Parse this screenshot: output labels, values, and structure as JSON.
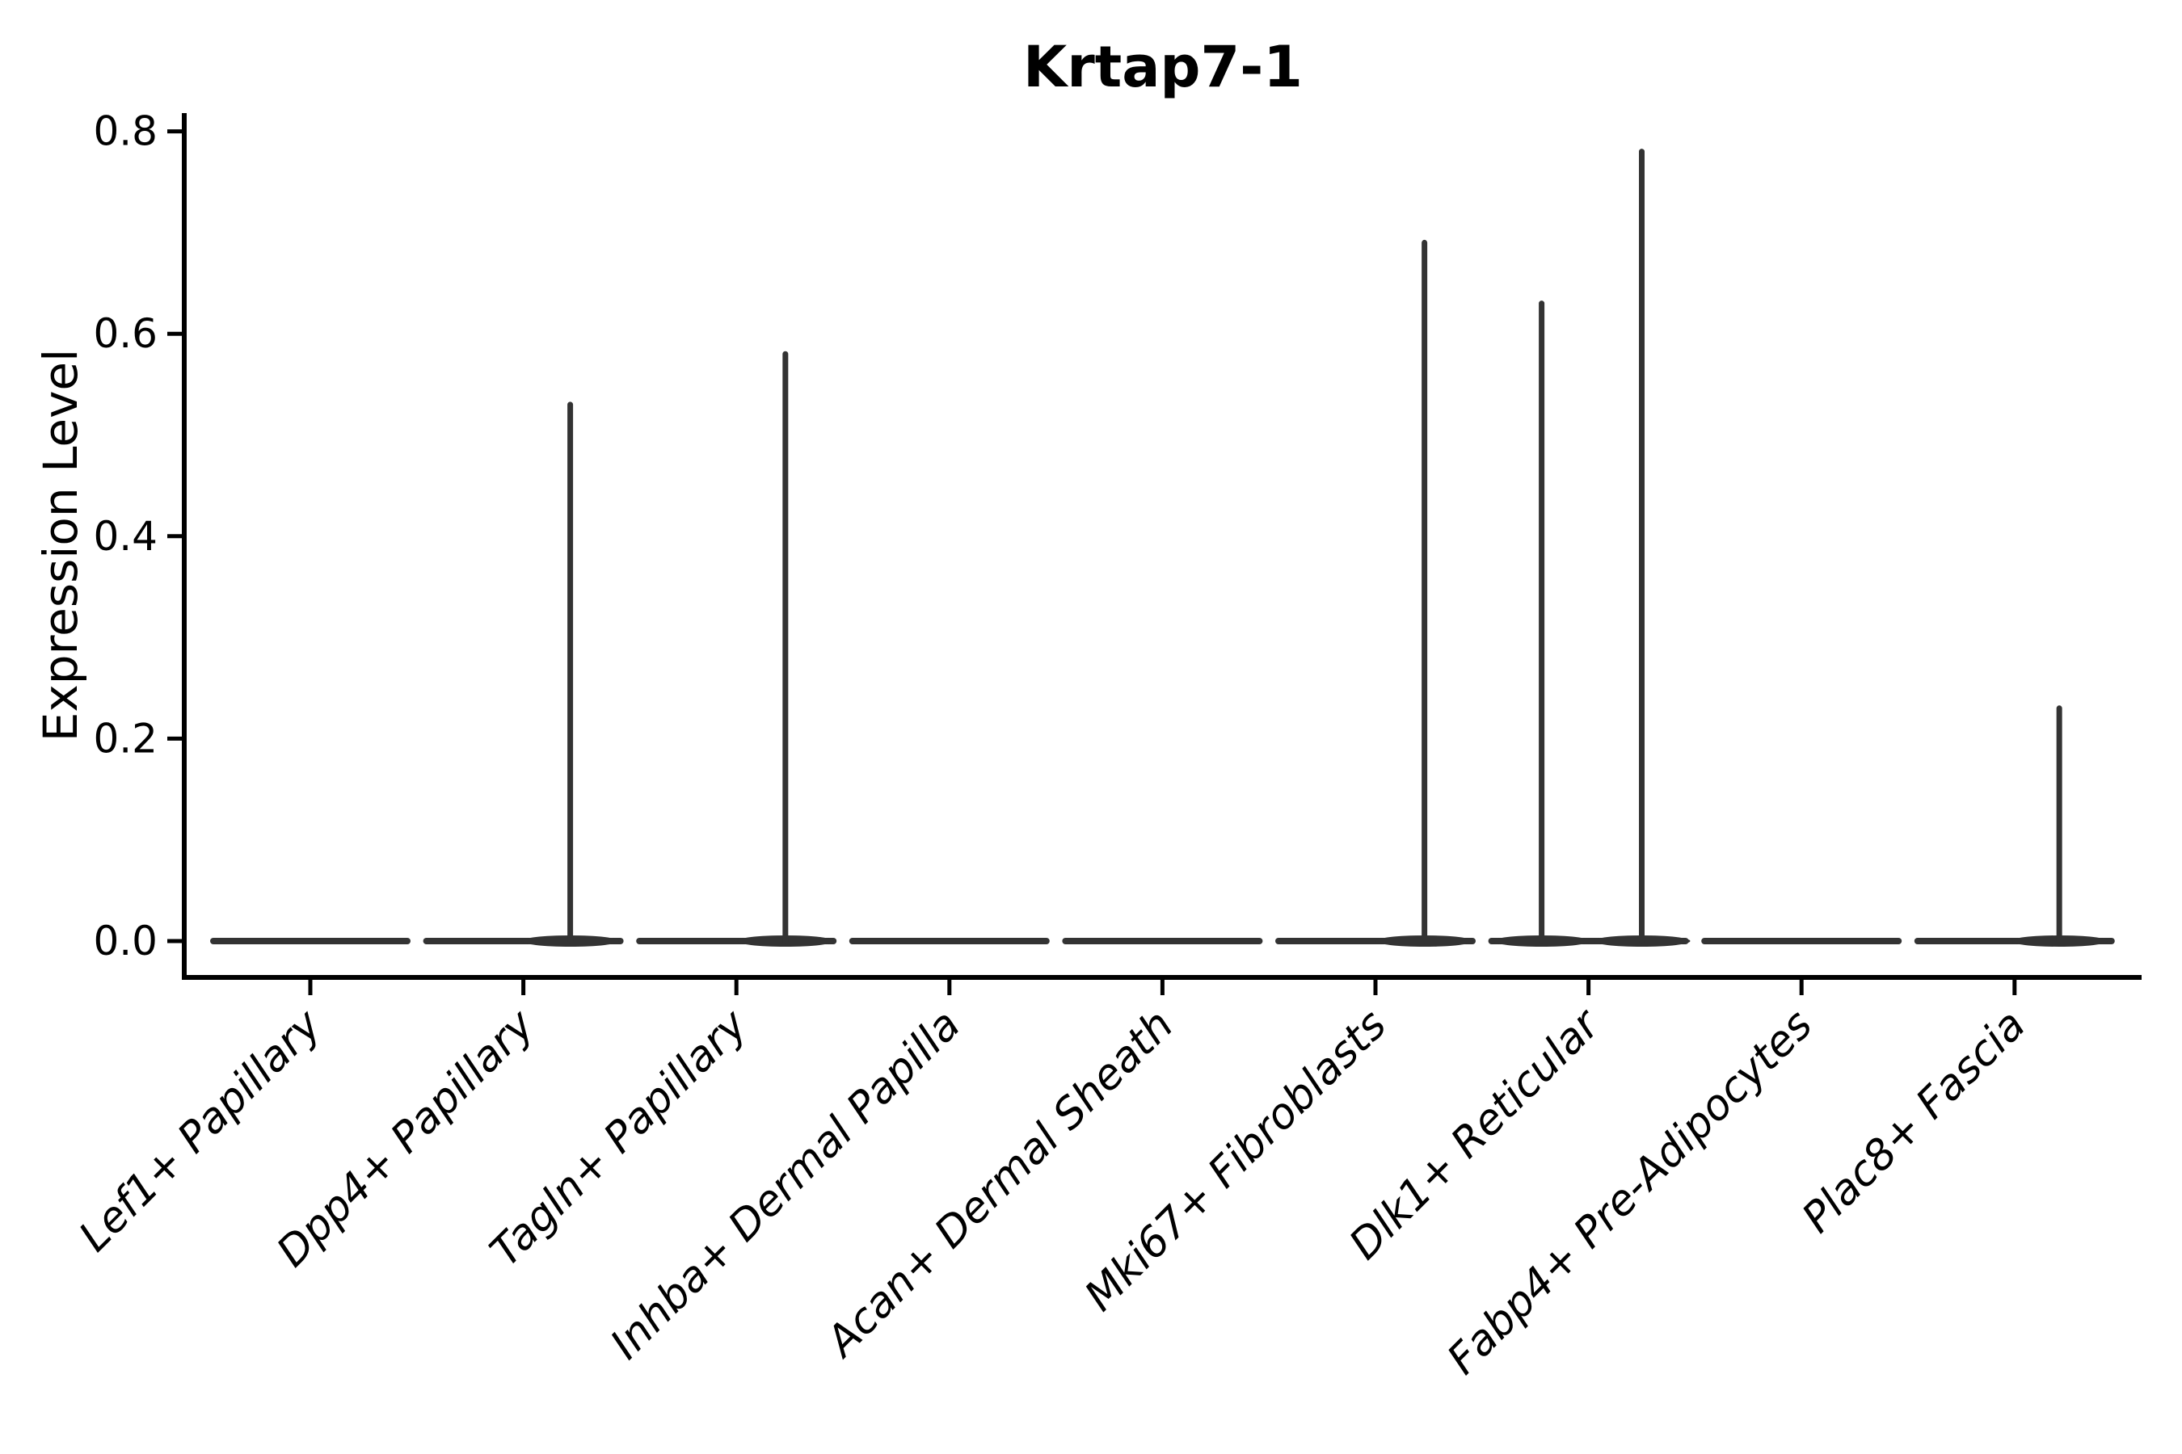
{
  "title": "Krtap7-1",
  "colors": {
    "background": "#ffffff",
    "axis": "#000000",
    "text": "#000000",
    "violin": "#333333"
  },
  "chart_data": {
    "type": "violin",
    "title": "Krtap7-1",
    "xlabel": "",
    "ylabel": "Expression Level",
    "ylim": [
      -0.04,
      0.82
    ],
    "yticks": [
      0.0,
      0.2,
      0.4,
      0.6,
      0.8
    ],
    "ytick_labels": [
      "0.0",
      "0.2",
      "0.4",
      "0.6",
      "0.8"
    ],
    "grid": false,
    "legend": null,
    "categories": [
      "Lef1+ Papillary",
      "Dpp4+ Papillary",
      "Tagln+ Papillary",
      "Inhba+ Dermal Papilla",
      "Acan+ Dermal Sheath",
      "Mki67+ Fibroblasts",
      "Dlk1+ Reticular",
      "Fabp4+ Pre-Adipocytes",
      "Plac8+ Fascia"
    ],
    "series": [
      {
        "name": "Lef1+ Papillary",
        "baseline_value": 0.0,
        "spikes": []
      },
      {
        "name": "Dpp4+ Papillary",
        "baseline_value": 0.0,
        "spikes": [
          {
            "value": 0.53,
            "offset_frac": 0.22
          }
        ]
      },
      {
        "name": "Tagln+ Papillary",
        "baseline_value": 0.0,
        "spikes": [
          {
            "value": 0.58,
            "offset_frac": 0.23
          }
        ]
      },
      {
        "name": "Inhba+ Dermal Papilla",
        "baseline_value": 0.0,
        "spikes": []
      },
      {
        "name": "Acan+ Dermal Sheath",
        "baseline_value": 0.0,
        "spikes": []
      },
      {
        "name": "Mki67+ Fibroblasts",
        "baseline_value": 0.0,
        "spikes": [
          {
            "value": 0.69,
            "offset_frac": 0.23
          }
        ]
      },
      {
        "name": "Dlk1+ Reticular",
        "baseline_value": 0.0,
        "spikes": [
          {
            "value": 0.63,
            "offset_frac": -0.22
          },
          {
            "value": 0.78,
            "offset_frac": 0.25
          }
        ]
      },
      {
        "name": "Fabp4+ Pre-Adipocytes",
        "baseline_value": 0.0,
        "spikes": []
      },
      {
        "name": "Plac8+ Fascia",
        "baseline_value": 0.0,
        "spikes": [
          {
            "value": 0.23,
            "offset_frac": 0.21
          }
        ]
      }
    ]
  }
}
